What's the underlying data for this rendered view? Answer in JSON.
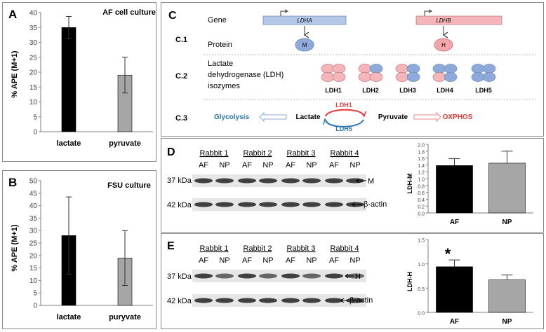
{
  "panels": {
    "A": {
      "letter": "A",
      "title": "AF cell culture",
      "ylabel": "% APE (M+1)"
    },
    "B": {
      "letter": "B",
      "title": "FSU culture",
      "ylabel": "% APE (M+1)"
    },
    "C": {
      "letter": "C",
      "rows": {
        "c1": "C.1",
        "c2": "C.2",
        "c3": "C.3"
      },
      "gene_label": "Gene",
      "protein_label": "Protein",
      "gene_a": "LDHA",
      "gene_b": "LDHB",
      "protein_a": "M",
      "protein_b": "H",
      "ldh_label": [
        "Lactate",
        "dehydrogenase (LDH)",
        "isozymes"
      ],
      "isozymes": [
        "LDH1",
        "LDH2",
        "LDH3",
        "LDH4",
        "LDH5"
      ],
      "c3": {
        "glycolysis": "Glycolysis",
        "lactate": "Lactate",
        "pyruvate": "Pyruvate",
        "oxphos": "OXPHOS",
        "ldh1": "LDH1",
        "ldh5": "LDH5"
      }
    },
    "D": {
      "letter": "D",
      "band_top": "37 kDa",
      "band_bottom": "42 kDa",
      "band_top_label": "M",
      "band_bottom_label": "β-actin",
      "ylabel": "LDH-M"
    },
    "E": {
      "letter": "E",
      "band_top": "37 kDa",
      "band_bottom": "42 kDa",
      "band_top_label": "H",
      "band_bottom_label": "β-actin",
      "ylabel": "LDH-H",
      "significance": "*"
    },
    "rabbits": [
      "Rabbit 1",
      "Rabbit 2",
      "Rabbit 3",
      "Rabbit 4"
    ],
    "lanes": [
      "AF",
      "NP"
    ]
  },
  "colors": {
    "black_bar": "#000000",
    "gray_bar": "#a6a6a6",
    "blue": "#8eaadb",
    "pink": "#f4b6b9",
    "red": "#e53935",
    "blue_text": "#2e75b6"
  },
  "chart_data": [
    {
      "id": "A",
      "type": "bar",
      "categories": [
        "lactate",
        "pyruvate"
      ],
      "values": [
        35,
        19
      ],
      "errors": [
        3.7,
        6
      ],
      "ylim": [
        0,
        40
      ],
      "yticks": [
        0,
        5,
        10,
        15,
        20,
        25,
        30,
        35,
        40
      ],
      "title": "AF cell culture",
      "ylabel": "% APE (M+1)",
      "xlabel": ""
    },
    {
      "id": "B",
      "type": "bar",
      "categories": [
        "lactate",
        "puryvate"
      ],
      "values": [
        28,
        19
      ],
      "errors": [
        15.5,
        11
      ],
      "ylim": [
        0,
        50
      ],
      "yticks": [
        0,
        5,
        10,
        15,
        20,
        25,
        30,
        35,
        40,
        45,
        50
      ],
      "title": "FSU culture",
      "ylabel": "% APE (M+1)",
      "xlabel": ""
    },
    {
      "id": "D",
      "type": "bar",
      "categories": [
        "AF",
        "NP"
      ],
      "values": [
        1.38,
        1.45
      ],
      "errors": [
        0.2,
        0.35
      ],
      "ylim": [
        0,
        2.0
      ],
      "yticks": [
        0,
        0.2,
        0.4,
        0.6,
        0.8,
        1.0,
        1.2,
        1.4,
        1.6,
        1.8,
        2.0
      ],
      "ylabel": "LDH-M",
      "xlabel": ""
    },
    {
      "id": "E",
      "type": "bar",
      "categories": [
        "AF",
        "NP"
      ],
      "values": [
        0.94,
        0.67
      ],
      "errors": [
        0.14,
        0.1
      ],
      "ylim": [
        0,
        1.5
      ],
      "yticks": [
        0,
        0.5,
        1.0,
        1.5
      ],
      "ylabel": "LDH-H",
      "xlabel": ""
    }
  ]
}
